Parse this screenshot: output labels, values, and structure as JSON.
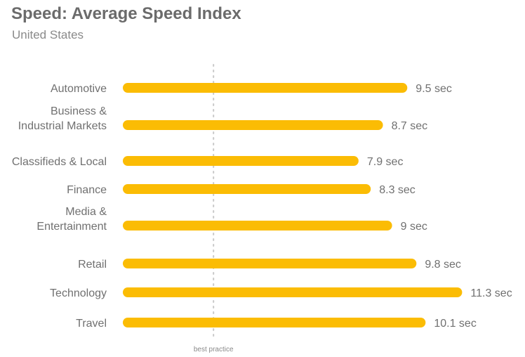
{
  "chart_data": {
    "type": "bar",
    "orientation": "horizontal",
    "title": "Speed: Average Speed Index",
    "subtitle": "United States",
    "categories": [
      [
        "Automotive"
      ],
      [
        "Business &",
        "Industrial Markets"
      ],
      [
        "Classifieds & Local"
      ],
      [
        "Finance"
      ],
      [
        "Media &",
        "Entertainment"
      ],
      [
        "Retail"
      ],
      [
        "Technology"
      ],
      [
        "Travel"
      ]
    ],
    "values": [
      9.5,
      8.7,
      7.9,
      8.3,
      9.0,
      9.8,
      11.3,
      10.1
    ],
    "value_labels": [
      "9.5 sec",
      "8.7 sec",
      "7.9 sec",
      "8.3 sec",
      "9 sec",
      "9.8 sec",
      "11.3 sec",
      "10.1 sec"
    ],
    "unit": "sec",
    "reference_line": {
      "value": 3,
      "label": "best practice"
    },
    "bar_color": "#fbbc04",
    "reference_line_color": "#c8c8c8",
    "grid": false,
    "legend": "none"
  }
}
